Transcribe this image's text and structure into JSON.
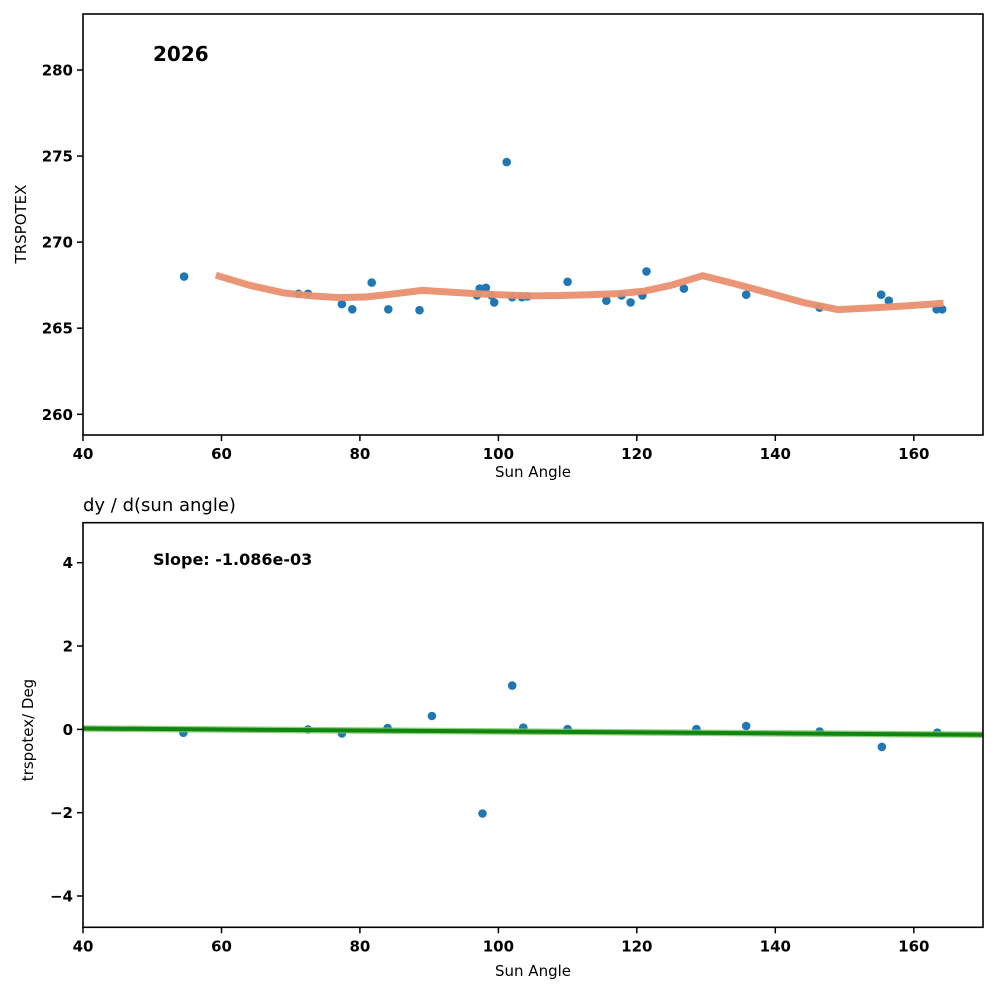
{
  "colors": {
    "scatter": "#1f77b4",
    "trend_line": "#e9906f",
    "fit_line": "#118511",
    "fit_line_halo": "#7ec865",
    "axis": "#000000",
    "background": "#ffffff"
  },
  "chart_data": [
    {
      "type": "scatter",
      "annotation": "2026",
      "xlabel": "Sun Angle",
      "ylabel": "TRSPOTEX",
      "xlim": [
        40,
        170
      ],
      "ylim": [
        258.8,
        283.25
      ],
      "xticks": [
        40,
        60,
        80,
        100,
        120,
        140,
        160
      ],
      "yticks": [
        260,
        265,
        270,
        275,
        280
      ],
      "grid": false,
      "legend": "none",
      "scatter": {
        "x": [
          54.6,
          71.1,
          72.5,
          77.4,
          78.9,
          81.7,
          84.1,
          88.6,
          96.9,
          97.3,
          98.2,
          99.0,
          99.4,
          101.2,
          102.0,
          103.4,
          104.2,
          110.0,
          115.6,
          117.8,
          119.1,
          120.8,
          121.4,
          126.8,
          135.8,
          146.4,
          155.3,
          156.4,
          163.3,
          164.1
        ],
        "y": [
          268.0,
          267.0,
          267.0,
          266.4,
          266.1,
          267.65,
          266.1,
          266.05,
          266.9,
          267.3,
          267.35,
          266.9,
          266.5,
          274.65,
          266.8,
          266.8,
          266.85,
          267.7,
          266.6,
          266.9,
          266.5,
          266.9,
          268.3,
          267.3,
          266.95,
          266.2,
          266.95,
          266.6,
          266.1,
          266.1
        ]
      },
      "trend_line": {
        "x": [
          59.2,
          64,
          69,
          73,
          77,
          81,
          85,
          89,
          93,
          97,
          101,
          105,
          109,
          113,
          117,
          121,
          125,
          129.5,
          134,
          139,
          144,
          149,
          154,
          159,
          164.3
        ],
        "y": [
          268.08,
          267.5,
          267.05,
          266.88,
          266.78,
          266.82,
          267.0,
          267.2,
          267.1,
          267.0,
          266.93,
          266.88,
          266.9,
          266.95,
          267.0,
          267.15,
          267.5,
          268.05,
          267.6,
          267.05,
          266.5,
          266.08,
          266.18,
          266.3,
          266.45
        ]
      }
    },
    {
      "type": "scatter",
      "title": "dy / d(sun angle)",
      "annotation": "Slope: -1.086e-03",
      "slope": "-1.086e-03",
      "xlabel": "Sun Angle",
      "ylabel": "trspotex/ Deg",
      "xlim": [
        40,
        170
      ],
      "ylim": [
        -4.75,
        4.96
      ],
      "xticks": [
        40,
        60,
        80,
        100,
        120,
        140,
        160
      ],
      "yticks": [
        -4,
        -2,
        0,
        2,
        4
      ],
      "grid": false,
      "legend": "none",
      "scatter": {
        "x": [
          54.5,
          72.5,
          77.4,
          84.0,
          90.4,
          97.7,
          102.0,
          103.6,
          110.0,
          128.6,
          135.8,
          146.4,
          155.4,
          163.4
        ],
        "y": [
          -0.08,
          0.0,
          -0.1,
          0.03,
          0.32,
          -2.02,
          1.05,
          0.04,
          0.01,
          0.01,
          0.08,
          -0.05,
          -0.42,
          -0.08
        ]
      },
      "fit_line": {
        "x": [
          40,
          170
        ],
        "y": [
          0.02,
          -0.13
        ]
      }
    }
  ]
}
